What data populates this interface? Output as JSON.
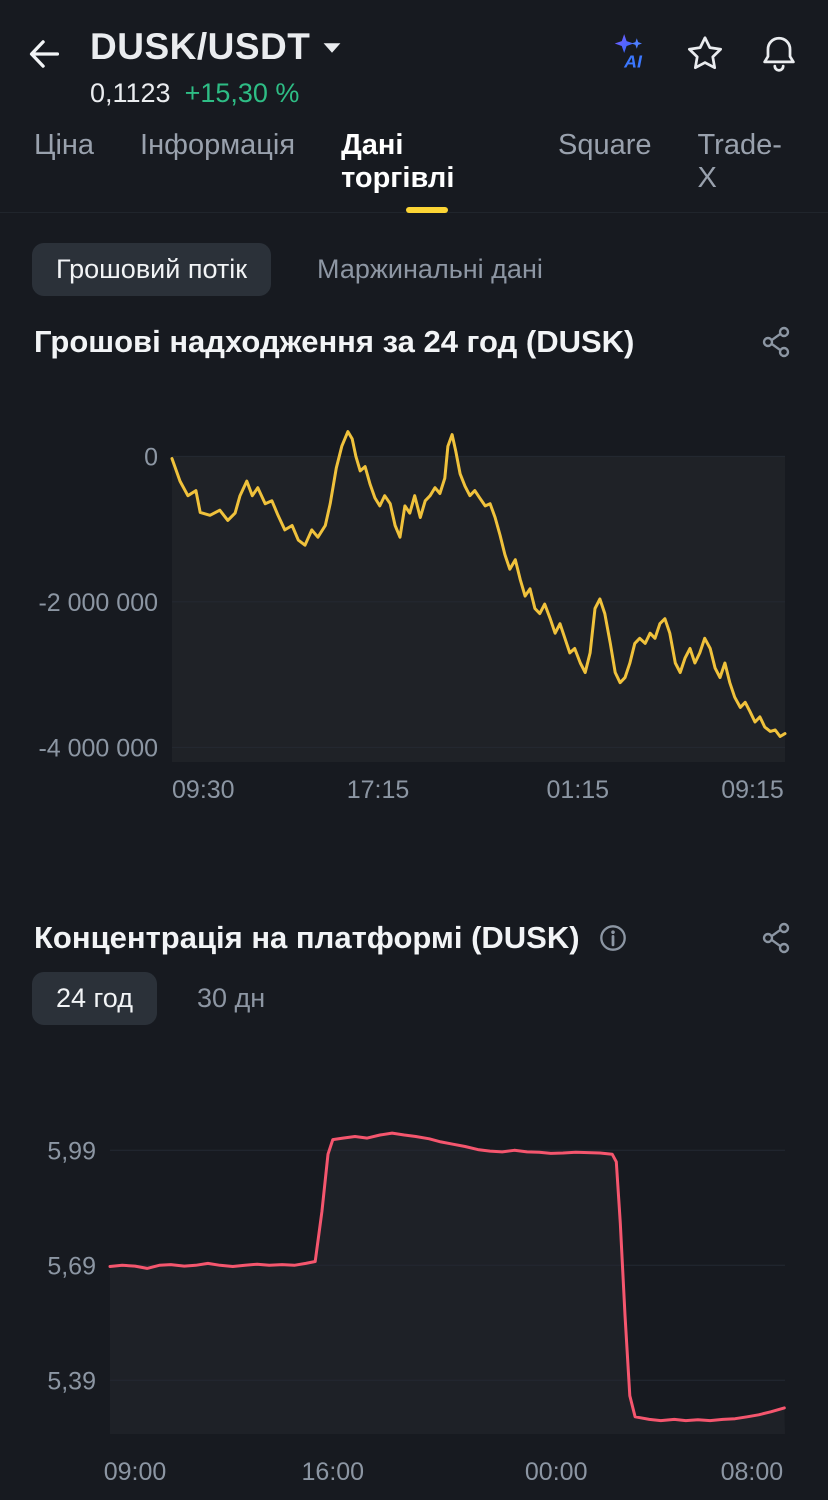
{
  "colors": {
    "background": "#171A20",
    "accent_yellow": "#FCD535",
    "positive_green": "#2EBD85",
    "flow_line": "#F0C23C",
    "concentration_line": "#F5566E",
    "muted_text": "#8C96A3"
  },
  "header": {
    "pair": "DUSK/USDT",
    "price": "0,1123",
    "change_pct": "+15,30 %",
    "ai_label": "AI"
  },
  "tabs": {
    "items": [
      {
        "label": "Ціна",
        "active": false
      },
      {
        "label": "Інформація",
        "active": false
      },
      {
        "label": "Дані торгівлі",
        "active": true
      },
      {
        "label": "Square",
        "active": false
      },
      {
        "label": "Trade-X",
        "active": false
      }
    ]
  },
  "subtabs": {
    "cash_flow": "Грошовий потік",
    "margin_data": "Маржинальні дані"
  },
  "ranges": {
    "h24": "24 год",
    "d30": "30 дн"
  },
  "chart_data": [
    {
      "type": "line",
      "id": "money-flow-24h",
      "title": "Грошові надходження за 24 год (DUSK)",
      "unit": "values are in millions (× 1 000 000)",
      "line_color": "#F0C23C",
      "ylim": [
        -4.2,
        0.5
      ],
      "baseline": 0,
      "fill": "below-baseline",
      "fill_color": "rgba(255,255,255,0.035)",
      "legend": "none",
      "grid": "horizontal",
      "y_ticks": [
        {
          "value": 0,
          "label": "0"
        },
        {
          "value": -2,
          "label": "-2 000 000"
        },
        {
          "value": -4,
          "label": "-4 000 000"
        }
      ],
      "x_ticks": [
        {
          "pos": 0.051,
          "label": "09:30"
        },
        {
          "pos": 0.336,
          "label": "17:15"
        },
        {
          "pos": 0.662,
          "label": "01:15"
        },
        {
          "pos": 0.947,
          "label": "09:15"
        }
      ],
      "points": [
        [
          0.0,
          -0.03
        ],
        [
          0.013,
          -0.34
        ],
        [
          0.026,
          -0.54
        ],
        [
          0.039,
          -0.47
        ],
        [
          0.046,
          -0.77
        ],
        [
          0.062,
          -0.81
        ],
        [
          0.078,
          -0.74
        ],
        [
          0.091,
          -0.88
        ],
        [
          0.103,
          -0.78
        ],
        [
          0.111,
          -0.54
        ],
        [
          0.122,
          -0.34
        ],
        [
          0.131,
          -0.54
        ],
        [
          0.14,
          -0.43
        ],
        [
          0.152,
          -0.65
        ],
        [
          0.163,
          -0.61
        ],
        [
          0.173,
          -0.81
        ],
        [
          0.184,
          -1.01
        ],
        [
          0.196,
          -0.95
        ],
        [
          0.206,
          -1.15
        ],
        [
          0.217,
          -1.22
        ],
        [
          0.228,
          -1.01
        ],
        [
          0.238,
          -1.11
        ],
        [
          0.25,
          -0.95
        ],
        [
          0.258,
          -0.65
        ],
        [
          0.268,
          -0.16
        ],
        [
          0.277,
          0.14
        ],
        [
          0.287,
          0.34
        ],
        [
          0.294,
          0.24
        ],
        [
          0.3,
          0.0
        ],
        [
          0.307,
          -0.2
        ],
        [
          0.315,
          -0.14
        ],
        [
          0.323,
          -0.38
        ],
        [
          0.331,
          -0.57
        ],
        [
          0.339,
          -0.68
        ],
        [
          0.347,
          -0.54
        ],
        [
          0.356,
          -0.65
        ],
        [
          0.364,
          -0.95
        ],
        [
          0.372,
          -1.11
        ],
        [
          0.38,
          -0.68
        ],
        [
          0.388,
          -0.78
        ],
        [
          0.396,
          -0.54
        ],
        [
          0.405,
          -0.84
        ],
        [
          0.413,
          -0.61
        ],
        [
          0.421,
          -0.54
        ],
        [
          0.429,
          -0.43
        ],
        [
          0.437,
          -0.51
        ],
        [
          0.445,
          -0.3
        ],
        [
          0.45,
          0.14
        ],
        [
          0.457,
          0.3
        ],
        [
          0.463,
          0.07
        ],
        [
          0.47,
          -0.24
        ],
        [
          0.478,
          -0.41
        ],
        [
          0.486,
          -0.54
        ],
        [
          0.494,
          -0.47
        ],
        [
          0.502,
          -0.57
        ],
        [
          0.511,
          -0.68
        ],
        [
          0.519,
          -0.65
        ],
        [
          0.527,
          -0.84
        ],
        [
          0.535,
          -1.08
        ],
        [
          0.543,
          -1.35
        ],
        [
          0.551,
          -1.55
        ],
        [
          0.56,
          -1.42
        ],
        [
          0.568,
          -1.69
        ],
        [
          0.576,
          -1.92
        ],
        [
          0.584,
          -1.82
        ],
        [
          0.592,
          -2.09
        ],
        [
          0.6,
          -2.16
        ],
        [
          0.608,
          -2.03
        ],
        [
          0.617,
          -2.23
        ],
        [
          0.625,
          -2.43
        ],
        [
          0.633,
          -2.3
        ],
        [
          0.641,
          -2.5
        ],
        [
          0.649,
          -2.7
        ],
        [
          0.657,
          -2.64
        ],
        [
          0.666,
          -2.84
        ],
        [
          0.674,
          -2.97
        ],
        [
          0.682,
          -2.7
        ],
        [
          0.69,
          -2.09
        ],
        [
          0.698,
          -1.96
        ],
        [
          0.706,
          -2.16
        ],
        [
          0.715,
          -2.57
        ],
        [
          0.723,
          -2.97
        ],
        [
          0.731,
          -3.11
        ],
        [
          0.739,
          -3.04
        ],
        [
          0.747,
          -2.84
        ],
        [
          0.755,
          -2.57
        ],
        [
          0.763,
          -2.5
        ],
        [
          0.772,
          -2.57
        ],
        [
          0.78,
          -2.43
        ],
        [
          0.788,
          -2.5
        ],
        [
          0.796,
          -2.3
        ],
        [
          0.804,
          -2.23
        ],
        [
          0.812,
          -2.43
        ],
        [
          0.821,
          -2.84
        ],
        [
          0.829,
          -2.97
        ],
        [
          0.837,
          -2.77
        ],
        [
          0.845,
          -2.64
        ],
        [
          0.853,
          -2.84
        ],
        [
          0.861,
          -2.7
        ],
        [
          0.869,
          -2.5
        ],
        [
          0.878,
          -2.64
        ],
        [
          0.886,
          -2.91
        ],
        [
          0.894,
          -3.04
        ],
        [
          0.902,
          -2.84
        ],
        [
          0.91,
          -3.11
        ],
        [
          0.918,
          -3.31
        ],
        [
          0.927,
          -3.45
        ],
        [
          0.935,
          -3.38
        ],
        [
          0.943,
          -3.51
        ],
        [
          0.951,
          -3.65
        ],
        [
          0.959,
          -3.58
        ],
        [
          0.967,
          -3.72
        ],
        [
          0.976,
          -3.78
        ],
        [
          0.984,
          -3.76
        ],
        [
          0.992,
          -3.85
        ],
        [
          1.0,
          -3.81
        ]
      ]
    },
    {
      "type": "line",
      "id": "platform-concentration",
      "title": "Концентрація на платформі (DUSK)",
      "unit": "percent",
      "line_color": "#F5566E",
      "ylim": [
        5.25,
        6.09
      ],
      "fill": "area",
      "fill_color": "rgba(255,255,255,0.03)",
      "legend": "none",
      "grid": "horizontal",
      "y_ticks": [
        {
          "value": 5.99,
          "label": "5,99"
        },
        {
          "value": 5.69,
          "label": "5,69"
        },
        {
          "value": 5.39,
          "label": "5,39"
        }
      ],
      "x_ticks": [
        {
          "pos": 0.037,
          "label": "09:00"
        },
        {
          "pos": 0.33,
          "label": "16:00"
        },
        {
          "pos": 0.661,
          "label": "00:00"
        },
        {
          "pos": 0.951,
          "label": "08:00"
        }
      ],
      "points": [
        [
          0.0,
          5.687
        ],
        [
          0.018,
          5.69
        ],
        [
          0.037,
          5.688
        ],
        [
          0.055,
          5.682
        ],
        [
          0.073,
          5.69
        ],
        [
          0.09,
          5.692
        ],
        [
          0.11,
          5.688
        ],
        [
          0.127,
          5.69
        ],
        [
          0.145,
          5.695
        ],
        [
          0.163,
          5.69
        ],
        [
          0.182,
          5.687
        ],
        [
          0.2,
          5.69
        ],
        [
          0.218,
          5.693
        ],
        [
          0.236,
          5.69
        ],
        [
          0.255,
          5.692
        ],
        [
          0.273,
          5.69
        ],
        [
          0.29,
          5.695
        ],
        [
          0.304,
          5.7
        ],
        [
          0.314,
          5.83
        ],
        [
          0.323,
          5.98
        ],
        [
          0.33,
          6.018
        ],
        [
          0.345,
          6.022
        ],
        [
          0.363,
          6.026
        ],
        [
          0.381,
          6.022
        ],
        [
          0.4,
          6.03
        ],
        [
          0.418,
          6.035
        ],
        [
          0.436,
          6.03
        ],
        [
          0.453,
          6.026
        ],
        [
          0.473,
          6.02
        ],
        [
          0.49,
          6.012
        ],
        [
          0.508,
          6.006
        ],
        [
          0.526,
          6.0
        ],
        [
          0.545,
          5.992
        ],
        [
          0.563,
          5.988
        ],
        [
          0.581,
          5.986
        ],
        [
          0.599,
          5.99
        ],
        [
          0.618,
          5.986
        ],
        [
          0.636,
          5.985
        ],
        [
          0.653,
          5.982
        ],
        [
          0.671,
          5.983
        ],
        [
          0.69,
          5.985
        ],
        [
          0.708,
          5.984
        ],
        [
          0.726,
          5.983
        ],
        [
          0.744,
          5.98
        ],
        [
          0.75,
          5.96
        ],
        [
          0.756,
          5.8
        ],
        [
          0.763,
          5.56
        ],
        [
          0.77,
          5.35
        ],
        [
          0.778,
          5.295
        ],
        [
          0.799,
          5.288
        ],
        [
          0.816,
          5.285
        ],
        [
          0.836,
          5.288
        ],
        [
          0.853,
          5.285
        ],
        [
          0.871,
          5.287
        ],
        [
          0.889,
          5.285
        ],
        [
          0.908,
          5.288
        ],
        [
          0.926,
          5.29
        ],
        [
          0.944,
          5.295
        ],
        [
          0.961,
          5.3
        ],
        [
          0.979,
          5.308
        ],
        [
          0.999,
          5.318
        ]
      ]
    }
  ]
}
